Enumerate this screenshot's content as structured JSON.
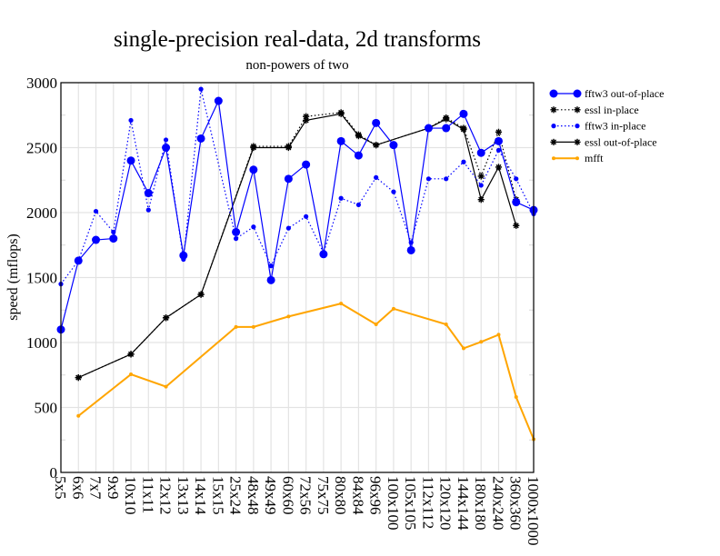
{
  "chart_data": {
    "type": "line",
    "title": "single-precision real-data, 2d transforms",
    "subtitle": "non-powers of two",
    "xlabel": "",
    "ylabel": "speed (mflops)",
    "ylim": [
      0,
      3000
    ],
    "yticks": [
      0,
      500,
      1000,
      1500,
      2000,
      2500,
      3000
    ],
    "ytick_labels": [
      "0",
      "500",
      "1000",
      "1500",
      "2000",
      "2500",
      "3000"
    ],
    "grid": true,
    "legend_position": "right",
    "categories": [
      "5x5",
      "6x6",
      "7x7",
      "9x9",
      "10x10",
      "11x11",
      "12x12",
      "13x13",
      "14x14",
      "15x15",
      "25x24",
      "48x48",
      "49x49",
      "60x60",
      "72x56",
      "75x75",
      "80x80",
      "84x84",
      "96x96",
      "100x100",
      "105x105",
      "112x112",
      "120x120",
      "144x144",
      "180x180",
      "240x240",
      "360x360",
      "1000x1000"
    ],
    "series": [
      {
        "name": "fftw3 out-of-place",
        "color": "#0000ff",
        "line": "solid",
        "marker": "big-dot",
        "values": [
          1100,
          1630,
          1790,
          1800,
          2400,
          2150,
          2500,
          1670,
          2570,
          2860,
          1850,
          2330,
          1480,
          2260,
          2370,
          1680,
          2550,
          2440,
          2690,
          2520,
          1710,
          2650,
          2650,
          2760,
          2460,
          2550,
          2080,
          2020
        ]
      },
      {
        "name": "essl in-place",
        "color": "#000000",
        "line": "dotted",
        "marker": "star",
        "values": [
          null,
          730,
          null,
          null,
          910,
          null,
          1190,
          null,
          1370,
          null,
          null,
          2510,
          null,
          2510,
          2740,
          null,
          2770,
          2600,
          2520,
          null,
          null,
          2650,
          2730,
          2650,
          2280,
          2620,
          2100,
          null
        ]
      },
      {
        "name": "fftw3 in-place",
        "color": "#0000ff",
        "line": "dotted",
        "marker": "small-dot",
        "values": [
          1450,
          1630,
          2010,
          1850,
          2710,
          2020,
          2560,
          1640,
          2950,
          null,
          1800,
          1890,
          1590,
          1880,
          1970,
          1690,
          2110,
          2060,
          2270,
          2160,
          1770,
          2260,
          2260,
          2390,
          2210,
          2480,
          2260,
          1990
        ]
      },
      {
        "name": "essl out-of-place",
        "color": "#000000",
        "line": "solid",
        "marker": "star",
        "values": [
          null,
          730,
          null,
          null,
          910,
          null,
          1190,
          null,
          1370,
          null,
          null,
          2500,
          null,
          2500,
          2710,
          null,
          2760,
          2590,
          2520,
          null,
          null,
          2650,
          2720,
          2640,
          2100,
          2350,
          1900,
          null
        ]
      },
      {
        "name": "mfft",
        "color": "#ffa500",
        "line": "solid",
        "marker": "tiny-dot",
        "values": [
          null,
          435,
          null,
          null,
          755,
          null,
          660,
          null,
          null,
          null,
          1120,
          1120,
          null,
          1200,
          null,
          null,
          1300,
          null,
          1140,
          1260,
          null,
          null,
          1140,
          955,
          1005,
          1060,
          580,
          255
        ]
      }
    ]
  }
}
